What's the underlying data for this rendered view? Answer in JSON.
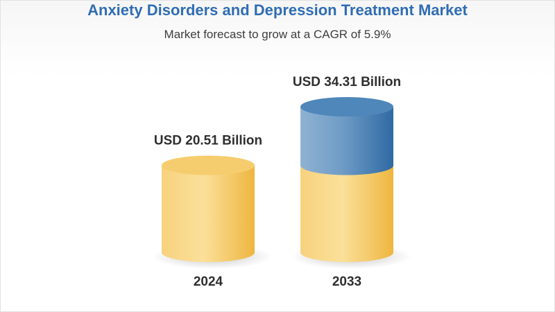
{
  "chart_data": {
    "type": "bar",
    "title": "Anxiety Disorders and Depression Treatment Market",
    "subtitle": "Market forecast to grow at a CAGR of 5.9%",
    "categories": [
      "2024",
      "2033"
    ],
    "values": [
      20.51,
      34.31
    ],
    "value_labels": [
      "USD 20.51 Billion",
      "USD 34.31 Billion"
    ],
    "unit": "USD Billion",
    "colors": {
      "base": "#f3c257",
      "growth": "#3f7eb3",
      "title": "#2f6db3"
    }
  }
}
